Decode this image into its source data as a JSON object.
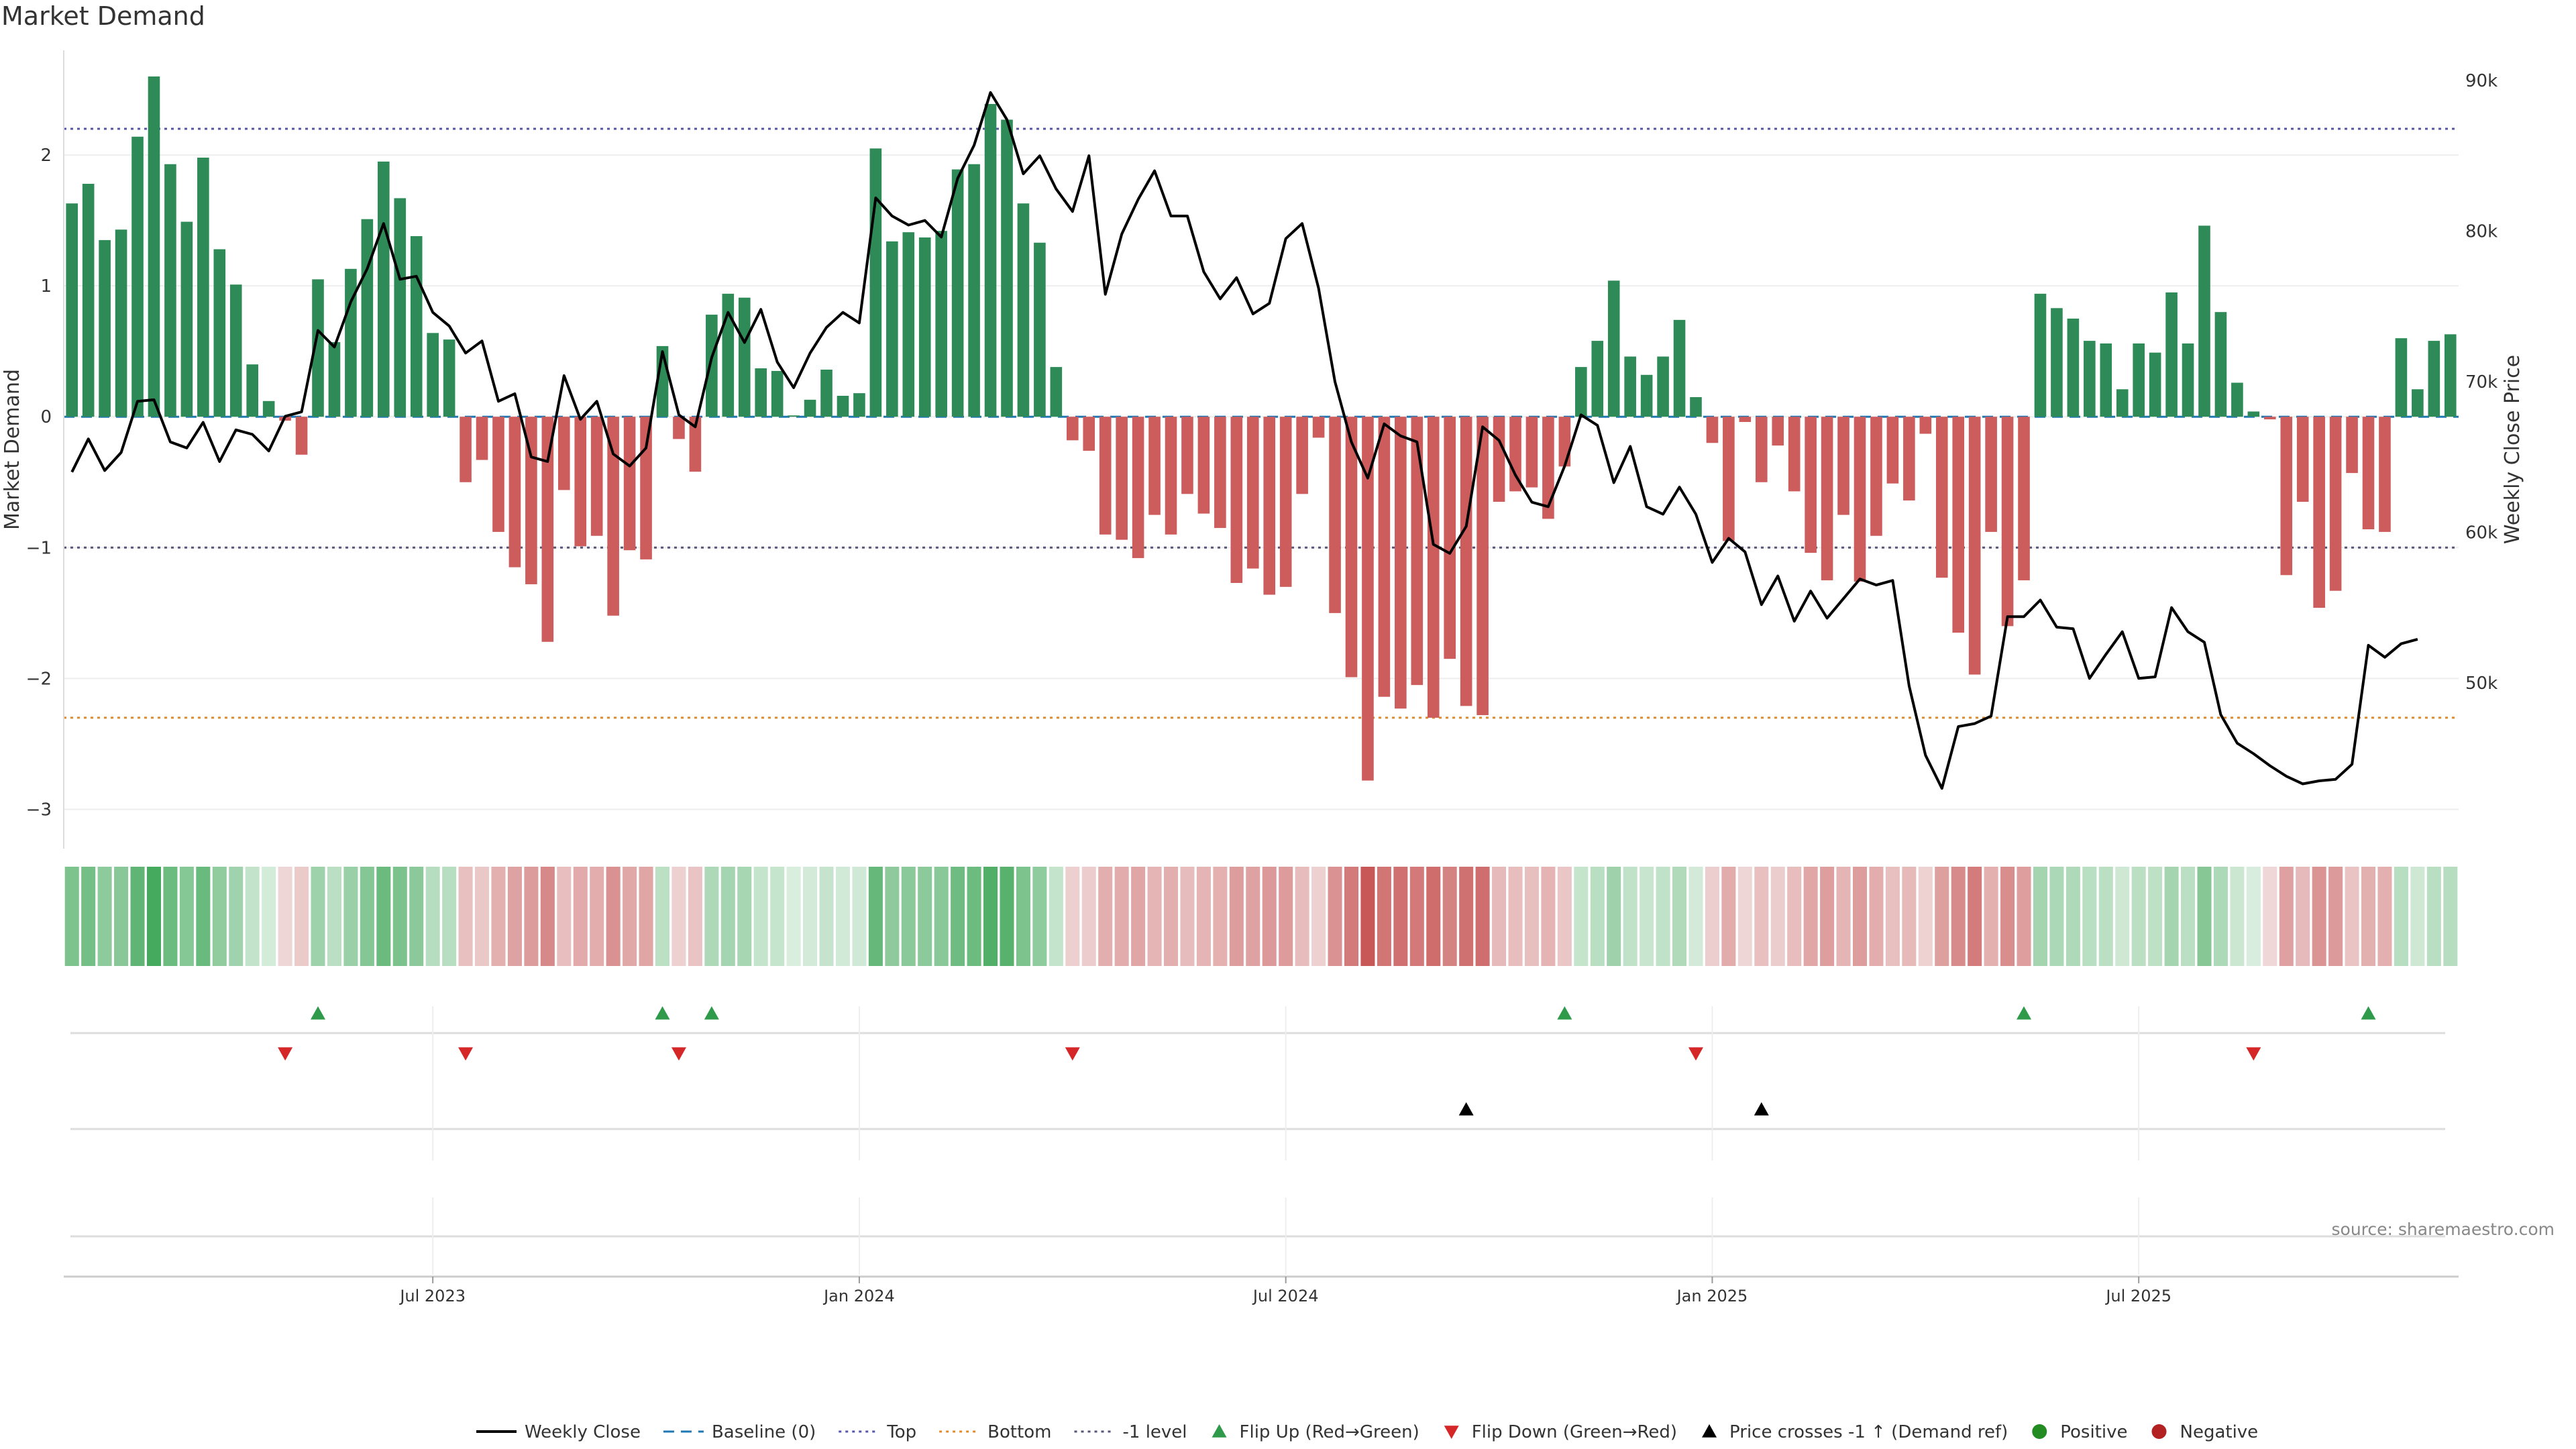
{
  "title": "Market Demand",
  "source": "source: sharemaestro.com",
  "colors": {
    "positive": "#2e8b57",
    "negative": "#cd5c5c",
    "line": "#000000",
    "top": "#5555aa",
    "bottom": "#e08a2a",
    "minus1": "#555577",
    "baseline": "#1f77b4",
    "flip_up": "#2e9a4a",
    "flip_down": "#d62728",
    "cross": "#000000"
  },
  "chart_data": {
    "type": "bar",
    "title": "Market Demand",
    "ylabel": "Market Demand",
    "y2label": "Weekly Close Price",
    "ylim": [
      -3.3,
      2.8
    ],
    "y2lim": [
      39000,
      92000
    ],
    "yticks": [
      2,
      1,
      0,
      -1,
      -2,
      -3
    ],
    "ytick_labels": [
      "2",
      "1",
      "0",
      "−1",
      "−2",
      "−3"
    ],
    "y2ticks": [
      90000,
      80000,
      70000,
      60000,
      50000
    ],
    "y2tick_labels": [
      "90k",
      "80k",
      "70k",
      "60k",
      "50k"
    ],
    "x_ticks": [
      {
        "index": 22,
        "label": "Jul 2023"
      },
      {
        "index": 48,
        "label": "Jan 2024"
      },
      {
        "index": 74,
        "label": "Jul 2024"
      },
      {
        "index": 100,
        "label": "Jan 2025"
      },
      {
        "index": 126,
        "label": "Jul 2025"
      }
    ],
    "reference_lines": {
      "top": 2.2,
      "bottom": -2.3,
      "minus_one": -1,
      "baseline": 0
    },
    "demand": [
      1.63,
      1.78,
      1.35,
      1.43,
      2.14,
      2.6,
      1.93,
      1.49,
      1.98,
      1.28,
      1.01,
      0.4,
      0.12,
      -0.03,
      -0.29,
      1.05,
      0.57,
      1.13,
      1.51,
      1.95,
      1.67,
      1.38,
      0.64,
      0.59,
      -0.5,
      -0.33,
      -0.88,
      -1.15,
      -1.28,
      -1.72,
      -0.56,
      -0.99,
      -0.91,
      -1.52,
      -1.02,
      -1.09,
      0.54,
      -0.17,
      -0.42,
      0.78,
      0.94,
      0.91,
      0.37,
      0.35,
      0.01,
      0.13,
      0.36,
      0.16,
      0.18,
      2.05,
      1.34,
      1.41,
      1.37,
      1.42,
      1.89,
      1.93,
      2.39,
      2.27,
      1.63,
      1.33,
      0.38,
      -0.18,
      -0.26,
      -0.9,
      -0.94,
      -1.08,
      -0.75,
      -0.9,
      -0.59,
      -0.74,
      -0.85,
      -1.27,
      -1.16,
      -1.36,
      -1.3,
      -0.59,
      -0.16,
      -1.5,
      -1.99,
      -2.78,
      -2.14,
      -2.23,
      -2.05,
      -2.3,
      -1.85,
      -2.21,
      -2.28,
      -0.65,
      -0.57,
      -0.54,
      -0.78,
      -0.38,
      0.38,
      0.58,
      1.04,
      0.46,
      0.32,
      0.46,
      0.74,
      0.15,
      -0.2,
      -0.95,
      -0.04,
      -0.5,
      -0.22,
      -0.57,
      -1.04,
      -1.25,
      -0.75,
      -1.26,
      -0.91,
      -0.51,
      -0.64,
      -0.13,
      -1.23,
      -1.65,
      -1.97,
      -0.88,
      -1.6,
      -1.25,
      0.94,
      0.83,
      0.75,
      0.58,
      0.56,
      0.21,
      0.56,
      0.49,
      0.95,
      0.56,
      1.46,
      0.8,
      0.26,
      0.04,
      -0.02,
      -1.21,
      -0.65,
      -1.46,
      -1.33,
      -0.43,
      -0.86,
      -0.88,
      0.6,
      0.21,
      0.58,
      0.63
    ],
    "weekly_close": [
      64000,
      66200,
      64100,
      65300,
      68700,
      68800,
      66000,
      65600,
      67300,
      64700,
      66800,
      66500,
      65400,
      67700,
      68000,
      73400,
      72300,
      75300,
      77500,
      80500,
      76800,
      77000,
      74600,
      73700,
      71900,
      72700,
      68700,
      69200,
      65000,
      64700,
      70400,
      67500,
      68700,
      65200,
      64400,
      65600,
      72000,
      67800,
      67000,
      71600,
      74600,
      72600,
      74800,
      71300,
      69600,
      71900,
      73600,
      74600,
      73900,
      82200,
      81000,
      80400,
      80700,
      79600,
      83500,
      85700,
      89200,
      87400,
      83800,
      85000,
      82800,
      81300,
      85000,
      75800,
      79800,
      82100,
      84000,
      81000,
      81000,
      77300,
      75500,
      76900,
      74500,
      75200,
      79500,
      80500,
      76200,
      70000,
      66000,
      63600,
      67200,
      66400,
      66000,
      59200,
      58600,
      60400,
      67000,
      66100,
      63800,
      62000,
      61700,
      64400,
      67800,
      67100,
      63300,
      65700,
      61700,
      61200,
      63000,
      61200,
      58000,
      59600,
      58700,
      55200,
      57100,
      54100,
      56100,
      54300,
      55600,
      56900,
      56500,
      56800,
      49800,
      45200,
      43000,
      47100,
      47300,
      47800,
      54400,
      54400,
      55500,
      53700,
      53600,
      50300,
      51900,
      53400,
      50300,
      50400,
      55000,
      53400,
      52700,
      47900,
      46000,
      45300,
      44500,
      43800,
      43300,
      43500,
      43600,
      44600,
      52500,
      51700,
      52600,
      52900
    ]
  },
  "strip_label": "",
  "signal_rows": {
    "flip_up": [
      15,
      36,
      39,
      91,
      119,
      140
    ],
    "flip_down": [
      13,
      24,
      37,
      61,
      99,
      133
    ],
    "price_cross": [
      85,
      103
    ]
  },
  "legend": [
    {
      "label": "Weekly Close",
      "icon": "solid-line"
    },
    {
      "label": "Baseline (0)",
      "icon": "dashed-line"
    },
    {
      "label": "Top",
      "icon": "dotted-line-purple"
    },
    {
      "label": "Bottom",
      "icon": "dotted-line-orange"
    },
    {
      "label": "-1 level",
      "icon": "dotted-line-gray"
    },
    {
      "label": "Flip Up (Red→Green)",
      "icon": "triangle-up-green"
    },
    {
      "label": "Flip Down (Green→Red)",
      "icon": "triangle-down-red"
    },
    {
      "label": "Price crosses -1 ↑ (Demand ref)",
      "icon": "triangle-up-black"
    },
    {
      "label": "Positive",
      "icon": "circle-green"
    },
    {
      "label": "Negative",
      "icon": "circle-red"
    }
  ]
}
